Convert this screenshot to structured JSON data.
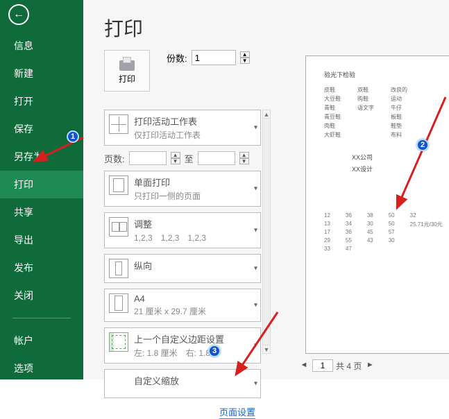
{
  "colors": {
    "sidebar_bg": "#0f6b3a",
    "sidebar_active": "#1f8a53",
    "arrow_red": "#d62020",
    "badge_bg": "#1851c8",
    "link": "#1464c0"
  },
  "back_glyph": "←",
  "menu": {
    "items": [
      "信息",
      "新建",
      "打开",
      "保存",
      "另存为",
      "打印",
      "共享",
      "导出",
      "发布",
      "关闭",
      "帐户",
      "选项"
    ],
    "active_index": 5,
    "divider_after": 9
  },
  "page_title": "打印",
  "print_button_label": "打印",
  "copies": {
    "label": "份数:",
    "value": "1"
  },
  "pages": {
    "label": "页数:",
    "from": "",
    "to_label": "至",
    "to": ""
  },
  "blocks": [
    {
      "icon": "grid",
      "t1": "打印活动工作表",
      "t2": "仅打印活动工作表"
    },
    {
      "icon": "page",
      "t1": "单面打印",
      "t2": "只打印一侧的页面"
    },
    {
      "icon": "multi",
      "t1": "调整",
      "t2": "1,2,3　1,2,3　1,2,3"
    },
    {
      "icon": "portrait",
      "t1": "纵向",
      "t2": ""
    },
    {
      "icon": "a4",
      "t1": "A4",
      "t2": "21 厘米 x 29.7 厘米"
    },
    {
      "icon": "margin",
      "t1": "上一个自定义边距设置",
      "t2": "左: 1.8 厘米　右: 1.8…"
    },
    {
      "icon": "none",
      "t1": "自定义缩放",
      "t2": ""
    }
  ],
  "page_setup_link": "页面设置",
  "preview": {
    "title": "验光下检验",
    "table": [
      [
        "皮鞋",
        "双鞋",
        "改良的"
      ],
      [
        "大豆鞋",
        "购鞋",
        "运动"
      ],
      [
        "青鞋",
        "语文字",
        "牛仔"
      ],
      [
        "青豆鞋",
        "",
        "板鞋"
      ],
      [
        "肉鞋",
        "",
        "鞋垫"
      ],
      [
        "大虾鞋",
        "",
        "布料"
      ]
    ],
    "mid1": "XX公司",
    "mid2": "XX设计",
    "nums": [
      [
        "12",
        "36",
        "38",
        "50",
        "32"
      ],
      [
        "13",
        "34",
        "30",
        "50",
        "25.71元/30元"
      ],
      [
        "17",
        "36",
        "45",
        "57",
        ""
      ],
      [
        "29",
        "55",
        "43",
        "30",
        ""
      ],
      [
        "33",
        "47",
        "",
        "",
        ""
      ]
    ]
  },
  "pager": {
    "current": "1",
    "total_label": "共 4 页",
    "prev": "◄",
    "next": "►"
  },
  "badges": {
    "b1": "1",
    "b2": "2",
    "b3": "3"
  }
}
